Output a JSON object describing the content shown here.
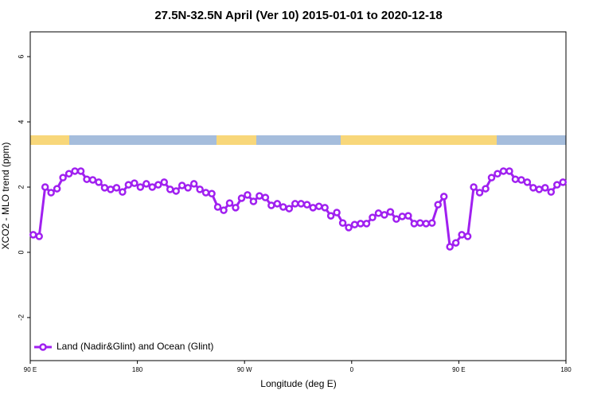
{
  "chart_data": {
    "type": "line",
    "title": "27.5N-32.5N April (Ver 10)   2015-01-01 to 2020-12-18",
    "x_label": "Longitude (deg E)",
    "y_label": "XCO2 - MLO trend (ppm)",
    "xlim": [
      90,
      540
    ],
    "ylim": [
      -3.32,
      6.76
    ],
    "xticks": [
      {
        "value": 90,
        "label": "90 E"
      },
      180,
      {
        "value": 270,
        "label": "90 W"
      },
      {
        "value": 360,
        "label": "0"
      },
      {
        "value": 450,
        "label": "90 E"
      },
      {
        "value": 540,
        "label": "180"
      }
    ],
    "yticks": [
      -2,
      0,
      2,
      4,
      6
    ],
    "legend": "bottom-left",
    "series": [
      {
        "name": "Land (Nadir&Glint) and Ocean (Glint)",
        "color": "#a020f0",
        "x": [
          92.5,
          97.5,
          102.5,
          107.5,
          112.5,
          117.5,
          122.5,
          127.5,
          132.5,
          137.5,
          142.5,
          147.5,
          152.5,
          157.5,
          162.5,
          167.5,
          172.5,
          177.5,
          182.5,
          187.5,
          192.5,
          197.5,
          202.5,
          207.5,
          212.5,
          217.5,
          222.5,
          227.5,
          232.5,
          237.5,
          242.5,
          247.5,
          252.5,
          257.5,
          262.5,
          267.5,
          272.5,
          277.5,
          282.5,
          287.5,
          292.5,
          297.5,
          302.5,
          307.5,
          312.5,
          317.5,
          322.5,
          327.5,
          332.5,
          337.5,
          342.5,
          347.5,
          352.5,
          357.5,
          362.5,
          367.5,
          372.5,
          377.5,
          382.5,
          387.5,
          392.5,
          397.5,
          402.5,
          407.5,
          412.5,
          417.5,
          422.5,
          427.5,
          432.5,
          437.5,
          442.5,
          447.5,
          452.5,
          457.5,
          462.5,
          467.5,
          472.5,
          477.5,
          482.5,
          487.5,
          492.5,
          497.5,
          502.5,
          507.5,
          512.5,
          517.5,
          522.5,
          527.5,
          532.5,
          537.5
        ],
        "values": [
          0.54,
          0.49,
          2.0,
          1.83,
          1.95,
          2.29,
          2.41,
          2.49,
          2.49,
          2.24,
          2.22,
          2.15,
          1.98,
          1.93,
          1.98,
          1.85,
          2.07,
          2.12,
          2.0,
          2.1,
          2.0,
          2.07,
          2.15,
          1.93,
          1.88,
          2.05,
          1.98,
          2.1,
          1.93,
          1.83,
          1.8,
          1.39,
          1.29,
          1.51,
          1.37,
          1.66,
          1.76,
          1.56,
          1.73,
          1.68,
          1.44,
          1.49,
          1.39,
          1.34,
          1.49,
          1.49,
          1.46,
          1.37,
          1.41,
          1.37,
          1.12,
          1.22,
          0.9,
          0.76,
          0.85,
          0.88,
          0.88,
          1.07,
          1.2,
          1.15,
          1.24,
          1.02,
          1.1,
          1.12,
          0.88,
          0.9,
          0.88,
          0.9,
          1.46,
          1.71,
          0.17,
          0.29,
          0.54,
          0.49,
          2.0,
          1.83,
          1.95,
          2.29,
          2.41,
          2.49,
          2.49,
          2.24,
          2.22,
          2.15,
          1.98,
          1.93,
          1.98,
          1.85,
          2.07,
          2.15
        ]
      }
    ]
  }
}
